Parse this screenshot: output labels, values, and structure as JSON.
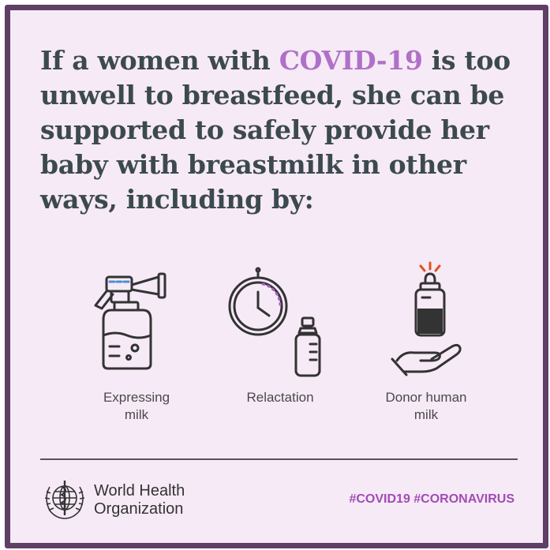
{
  "headline": {
    "part1": "If a women with ",
    "highlight": "COVID-19",
    "part2": " is too unwell to breastfeed, she can be supported to safely provide her baby with breastmilk in other ways, including by:"
  },
  "options": [
    {
      "line1": "Expressing",
      "line2": "milk",
      "icon": "breast-pump-icon"
    },
    {
      "line1": "Relactation",
      "line2": "",
      "icon": "clock-bottle-icon"
    },
    {
      "line1": "Donor human",
      "line2": "milk",
      "icon": "donor-milk-icon"
    }
  ],
  "footer": {
    "org_line1": "World Health",
    "org_line2": "Organization",
    "hashtags": "#COVID19 #CORONAVIRUS"
  },
  "colors": {
    "background": "#f6eaf6",
    "border": "#5f3f66",
    "highlight": "#b070c8",
    "hashtag": "#a24bb5",
    "text": "#3c4a4f"
  }
}
